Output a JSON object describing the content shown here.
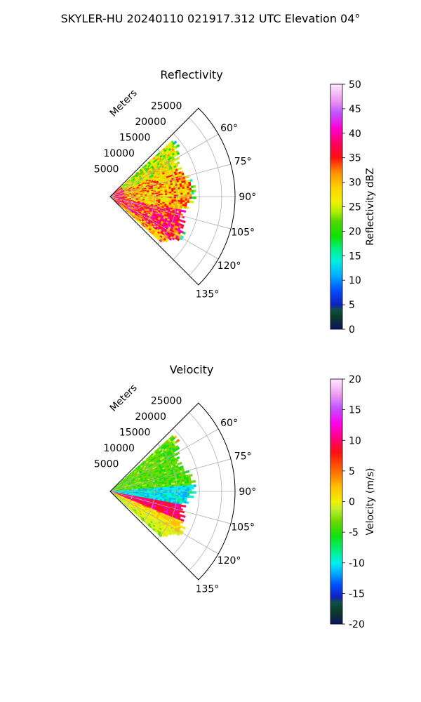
{
  "figure": {
    "title": "SKYLER-HU  20240110  021917.312 UTC Elevation 04°"
  },
  "chart_data": [
    {
      "type": "heatmap",
      "subtype": "polar-sector (radar PPI wedge)",
      "title": "Reflectivity",
      "radial_axis_label": "Meters",
      "radial_ticks": [
        5000,
        10000,
        15000,
        20000,
        25000
      ],
      "radial_range": [
        0,
        28000
      ],
      "angle_range_deg": [
        45,
        135
      ],
      "angle_ticks": [
        "60°",
        "75°",
        "90°",
        "105°",
        "120°",
        "135°"
      ],
      "grid": true,
      "colorbar": {
        "label": "Reflectivity dBZ",
        "ticks": [
          0,
          5,
          10,
          15,
          20,
          25,
          30,
          35,
          40,
          45,
          50
        ],
        "range": [
          0,
          50
        ],
        "placement": "right"
      },
      "data_extent_m": 22000,
      "approx_value_ranges": [
        {
          "region": "near range, all azimuths",
          "dBZ": "35–45"
        },
        {
          "region": "azimuth 55°–100°, 5–20 km",
          "dBZ": "25–40"
        },
        {
          "region": "azimuth 100°–125°, 5–15 km",
          "dBZ": "35–45"
        },
        {
          "region": "echo edge",
          "dBZ": "15–22"
        }
      ]
    },
    {
      "type": "heatmap",
      "subtype": "polar-sector (radar PPI wedge)",
      "title": "Velocity",
      "radial_axis_label": "Meters",
      "radial_ticks": [
        5000,
        10000,
        15000,
        20000,
        25000
      ],
      "radial_range": [
        0,
        28000
      ],
      "angle_range_deg": [
        45,
        135
      ],
      "angle_ticks": [
        "60°",
        "75°",
        "90°",
        "105°",
        "120°",
        "135°"
      ],
      "grid": true,
      "colorbar": {
        "label": "Velocity (m/s)",
        "ticks": [
          -20,
          -15,
          -10,
          -5,
          0,
          5,
          10,
          15,
          20
        ],
        "range": [
          -20,
          20
        ],
        "placement": "right"
      },
      "data_extent_m": 22000,
      "approx_value_ranges": [
        {
          "region": "azimuth 55°–85°",
          "m/s": "-6 to -2"
        },
        {
          "region": "azimuth 85°–100°",
          "m/s": "-12 to -9"
        },
        {
          "region": "azimuth 100°–112°",
          "m/s": "10 to 16"
        },
        {
          "region": "azimuth 112°–125°",
          "m/s": "0 to 8"
        }
      ]
    }
  ]
}
